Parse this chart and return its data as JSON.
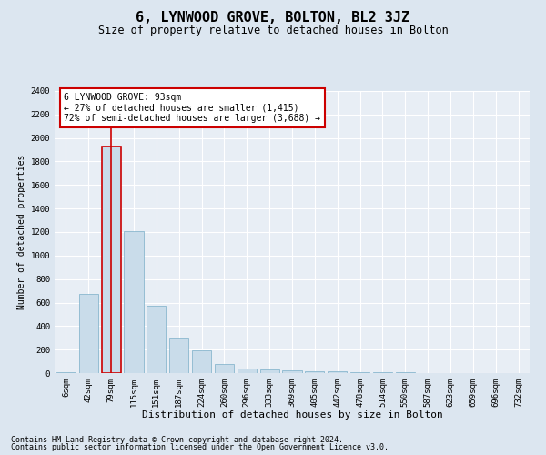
{
  "title": "6, LYNWOOD GROVE, BOLTON, BL2 3JZ",
  "subtitle": "Size of property relative to detached houses in Bolton",
  "xlabel": "Distribution of detached houses by size in Bolton",
  "ylabel": "Number of detached properties",
  "categories": [
    "6sqm",
    "42sqm",
    "79sqm",
    "115sqm",
    "151sqm",
    "187sqm",
    "224sqm",
    "260sqm",
    "296sqm",
    "333sqm",
    "369sqm",
    "405sqm",
    "442sqm",
    "478sqm",
    "514sqm",
    "550sqm",
    "587sqm",
    "623sqm",
    "659sqm",
    "696sqm",
    "732sqm"
  ],
  "values": [
    5,
    670,
    1930,
    1210,
    575,
    305,
    195,
    80,
    40,
    30,
    25,
    18,
    12,
    8,
    5,
    4,
    3,
    2,
    2,
    2,
    2
  ],
  "bar_color": "#c9dcea",
  "bar_edge_color": "#7aaec8",
  "highlight_index": 2,
  "highlight_color": "#cc0000",
  "ylim": [
    0,
    2400
  ],
  "yticks": [
    0,
    200,
    400,
    600,
    800,
    1000,
    1200,
    1400,
    1600,
    1800,
    2000,
    2200,
    2400
  ],
  "annotation_title": "6 LYNWOOD GROVE: 93sqm",
  "annotation_line1": "← 27% of detached houses are smaller (1,415)",
  "annotation_line2": "72% of semi-detached houses are larger (3,688) →",
  "annotation_box_color": "#ffffff",
  "annotation_box_edge": "#cc0000",
  "footer_line1": "Contains HM Land Registry data © Crown copyright and database right 2024.",
  "footer_line2": "Contains public sector information licensed under the Open Government Licence v3.0.",
  "background_color": "#dce6f0",
  "plot_bg_color": "#e8eef5",
  "grid_color": "#ffffff",
  "title_fontsize": 11,
  "subtitle_fontsize": 8.5,
  "xlabel_fontsize": 8,
  "ylabel_fontsize": 7,
  "tick_fontsize": 6.5,
  "footer_fontsize": 6,
  "ann_fontsize": 7
}
